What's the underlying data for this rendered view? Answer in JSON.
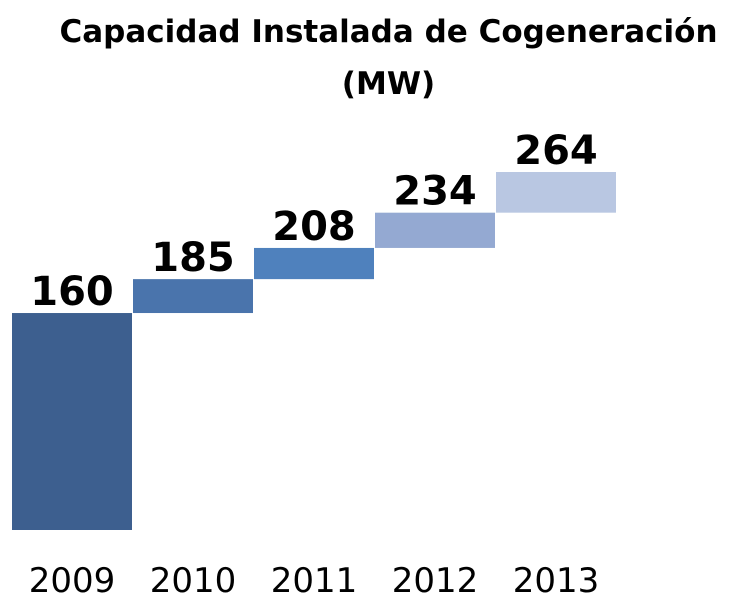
{
  "chart_data": {
    "type": "waterfall",
    "title": "Capacidad Instalada de Cogeneración (MW)",
    "categories": [
      "2009",
      "2010",
      "2011",
      "2012",
      "2013"
    ],
    "values": [
      160,
      185,
      208,
      234,
      264
    ],
    "colors": [
      "#3d5f8f",
      "#4a74ac",
      "#4f81bd",
      "#94a9d2",
      "#b9c7e2"
    ]
  }
}
